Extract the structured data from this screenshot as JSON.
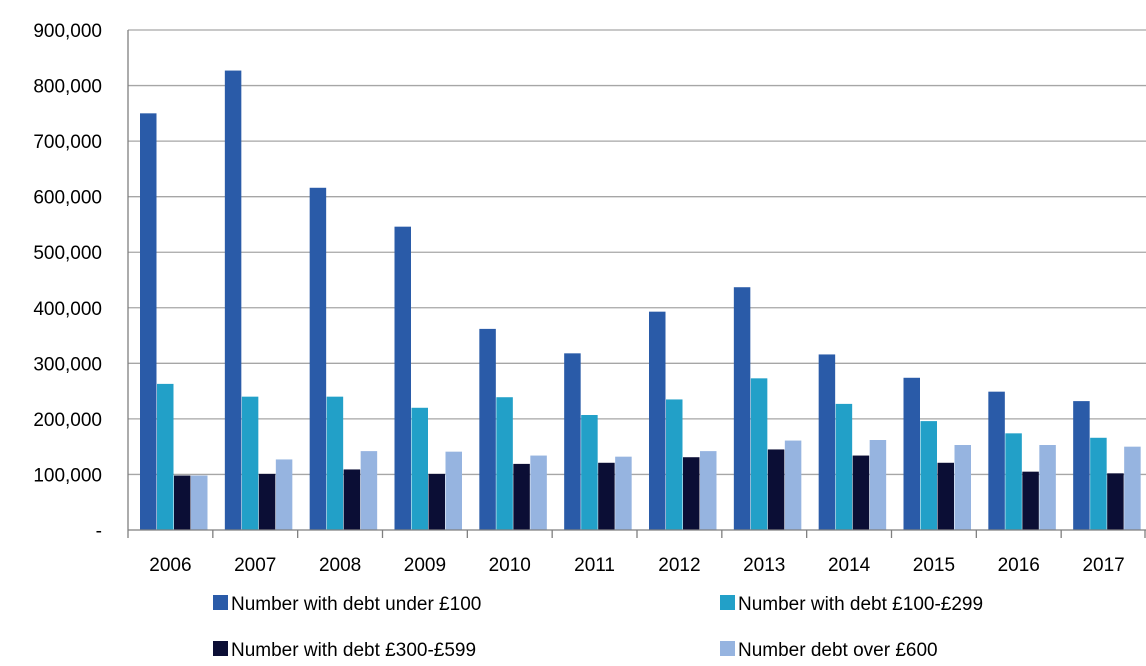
{
  "chart_data": {
    "type": "bar",
    "title": "",
    "xlabel": "",
    "ylabel": "",
    "categories": [
      "2006",
      "2007",
      "2008",
      "2009",
      "2010",
      "2011",
      "2012",
      "2013",
      "2014",
      "2015",
      "2016",
      "2017"
    ],
    "series": [
      {
        "name": "Number with debt under £100",
        "color": "#2A5BA8",
        "values": [
          750000,
          827000,
          616000,
          546000,
          362000,
          318000,
          393000,
          437000,
          316000,
          274000,
          249000,
          232000
        ]
      },
      {
        "name": "Number with debt £100-£299",
        "color": "#22A0C8",
        "values": [
          263000,
          240000,
          240000,
          220000,
          239000,
          207000,
          235000,
          273000,
          227000,
          196000,
          174000,
          166000
        ]
      },
      {
        "name": "Number with debt £300-£599",
        "color": "#0B0E35",
        "values": [
          98000,
          101000,
          109000,
          101000,
          119000,
          121000,
          131000,
          145000,
          134000,
          121000,
          105000,
          102000
        ]
      },
      {
        "name": "Number debt over £600",
        "color": "#96B4E0",
        "values": [
          98000,
          127000,
          142000,
          141000,
          134000,
          132000,
          142000,
          161000,
          162000,
          153000,
          153000,
          150000
        ]
      }
    ],
    "ylim": [
      0,
      900000
    ],
    "yticks": [
      0,
      100000,
      200000,
      300000,
      400000,
      500000,
      600000,
      700000,
      800000,
      900000
    ],
    "ytick_labels": [
      "-",
      "100,000",
      "200,000",
      "300,000",
      "400,000",
      "500,000",
      "600,000",
      "700,000",
      "800,000",
      "900,000"
    ],
    "grid": true,
    "legend_position": "bottom",
    "gridline_color": "#A6A6A6",
    "axis_color": "#7F7F7F"
  }
}
